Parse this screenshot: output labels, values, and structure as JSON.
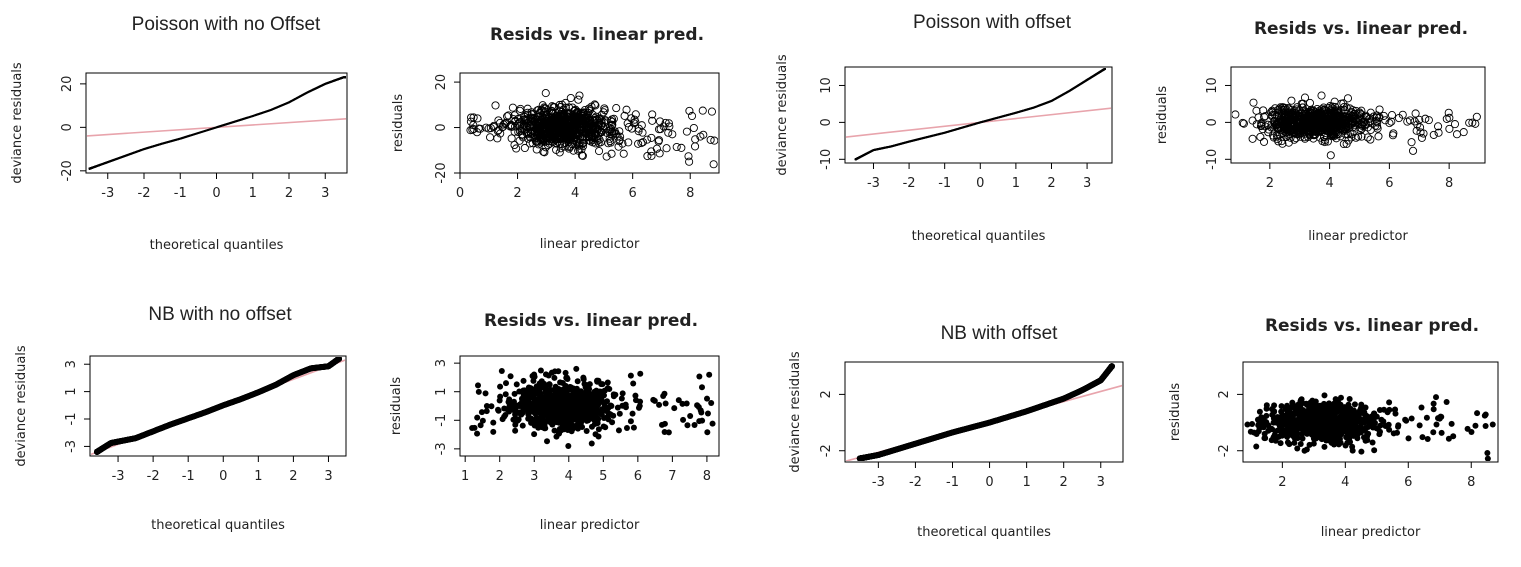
{
  "colors": {
    "points": "#000000",
    "reference_line": "#e8a4ac",
    "frame": "#000000"
  },
  "chart_data": [
    {
      "type": "scatter",
      "panel_id": "pois-noff-qq",
      "title": "Poisson with no Offset",
      "title_style": "plain",
      "xlabel": "theoretical quantiles",
      "ylabel": "deviance residuals",
      "xlim": [
        -3.6,
        3.6
      ],
      "ylim": [
        -21,
        25
      ],
      "xticks": [
        -3,
        -2,
        -1,
        0,
        1,
        2,
        3
      ],
      "yticks": [
        -20,
        0,
        20
      ],
      "marker": "dot",
      "kind": "qq",
      "qq_sd": 7.6,
      "qq_range": [
        -3.5,
        3.6
      ],
      "qq_curve": [
        [
          -3.5,
          -19
        ],
        [
          -3,
          -16
        ],
        [
          -2.5,
          -13
        ],
        [
          -2,
          -10
        ],
        [
          -1.5,
          -7.5
        ],
        [
          -1,
          -5.2
        ],
        [
          -0.5,
          -2.6
        ],
        [
          0,
          0
        ],
        [
          0.5,
          2.6
        ],
        [
          1,
          5.2
        ],
        [
          1.5,
          8
        ],
        [
          2,
          11.5
        ],
        [
          2.5,
          16
        ],
        [
          3,
          20
        ],
        [
          3.5,
          23
        ]
      ],
      "reference_line": {
        "slope": 1.1,
        "intercept": 0
      },
      "grid": false
    },
    {
      "type": "scatter",
      "panel_id": "pois-noff-rvl",
      "title": "Resids vs. linear pred.",
      "title_style": "bold",
      "xlabel": "linear predictor",
      "ylabel": "residuals",
      "xlim": [
        0,
        9.0
      ],
      "ylim": [
        -20,
        24
      ],
      "xticks": [
        0,
        2,
        4,
        6,
        8
      ],
      "yticks": [
        -20,
        0,
        20
      ],
      "marker": "circle",
      "kind": "resid",
      "resid_clusters": [
        {
          "n": 750,
          "xmean": 3.6,
          "xsd": 0.85,
          "ysd": 5
        },
        {
          "n": 55,
          "xmin": 5.2,
          "xmax": 8.9,
          "ymean": -3,
          "ysd": 8
        },
        {
          "n": 25,
          "xmin": 0.3,
          "xmax": 1.8,
          "ymean": 1,
          "ysd": 2
        }
      ],
      "grid": false
    },
    {
      "type": "scatter",
      "panel_id": "pois-off-qq",
      "title": "Poisson with offset",
      "title_style": "plain",
      "xlabel": "theoretical quantiles",
      "ylabel": "deviance residuals",
      "xlim": [
        -3.8,
        3.7
      ],
      "ylim": [
        -11,
        15
      ],
      "xticks": [
        -3,
        -2,
        -1,
        0,
        1,
        2,
        3
      ],
      "yticks": [
        -10,
        0,
        10
      ],
      "marker": "dot",
      "kind": "qq",
      "qq_sd": 3.3,
      "qq_range": [
        -3.5,
        3.5
      ],
      "qq_curve": [
        [
          -3.5,
          -10
        ],
        [
          -3,
          -7.5
        ],
        [
          -2.5,
          -6.5
        ],
        [
          -2,
          -5.2
        ],
        [
          -1.5,
          -4
        ],
        [
          -1,
          -2.8
        ],
        [
          -0.5,
          -1.4
        ],
        [
          0,
          0
        ],
        [
          0.5,
          1.3
        ],
        [
          1,
          2.6
        ],
        [
          1.5,
          4
        ],
        [
          2,
          5.8
        ],
        [
          2.5,
          8.5
        ],
        [
          3,
          11.5
        ],
        [
          3.5,
          14.5
        ]
      ],
      "reference_line": {
        "slope": 1.05,
        "intercept": 0
      },
      "grid": false
    },
    {
      "type": "scatter",
      "panel_id": "pois-off-rvl",
      "title": "Resids vs. linear pred.",
      "title_style": "bold",
      "xlabel": "linear predictor",
      "ylabel": "residuals",
      "xlim": [
        0.7,
        9.2
      ],
      "ylim": [
        -11,
        15
      ],
      "xticks": [
        2,
        4,
        6,
        8
      ],
      "yticks": [
        -10,
        0,
        10
      ],
      "marker": "circle",
      "kind": "resid",
      "resid_clusters": [
        {
          "n": 750,
          "xmean": 3.5,
          "xsd": 0.9,
          "ysd": 2.6
        },
        {
          "n": 40,
          "xmin": 5.5,
          "xmax": 9.0,
          "ymean": -0.5,
          "ysd": 3
        }
      ],
      "grid": false
    },
    {
      "type": "scatter",
      "panel_id": "nb-noff-qq",
      "title": "NB with no offset",
      "title_style": "plain",
      "xlabel": "theoretical quantiles",
      "ylabel": "deviance residuals",
      "xlim": [
        -3.8,
        3.5
      ],
      "ylim": [
        -3.7,
        3.6
      ],
      "xticks": [
        -3,
        -2,
        -1,
        0,
        1,
        2,
        3
      ],
      "yticks": [
        -3,
        -1,
        1,
        3
      ],
      "marker": "filled",
      "kind": "qq",
      "qq_sd": 0.95,
      "qq_range": [
        -3.6,
        3.3
      ],
      "qq_curve": [
        [
          -3.6,
          -3.4
        ],
        [
          -3.2,
          -2.75
        ],
        [
          -2.5,
          -2.4
        ],
        [
          -2,
          -1.9
        ],
        [
          -1.5,
          -1.4
        ],
        [
          -1,
          -0.95
        ],
        [
          -0.5,
          -0.5
        ],
        [
          0,
          0
        ],
        [
          0.5,
          0.45
        ],
        [
          1,
          0.95
        ],
        [
          1.5,
          1.5
        ],
        [
          2,
          2.2
        ],
        [
          2.5,
          2.7
        ],
        [
          3,
          2.85
        ],
        [
          3.3,
          3.4
        ]
      ],
      "reference_line": {
        "slope": 0.95,
        "intercept": 0
      },
      "grid": false
    },
    {
      "type": "scatter",
      "panel_id": "nb-noff-rvl",
      "title": "Resids vs. linear pred.",
      "title_style": "bold",
      "xlabel": "linear predictor",
      "ylabel": "residuals",
      "xlim": [
        0.85,
        8.35
      ],
      "ylim": [
        -3.5,
        3.5
      ],
      "xticks": [
        1,
        2,
        3,
        4,
        5,
        6,
        7,
        8
      ],
      "yticks": [
        -3,
        -1,
        1,
        3
      ],
      "marker": "filled",
      "kind": "resid",
      "resid_clusters": [
        {
          "n": 700,
          "xmean": 3.8,
          "xsd": 0.7,
          "ysd": 1.0
        },
        {
          "n": 45,
          "xmin": 5.3,
          "xmax": 8.2,
          "ymean": 0,
          "ysd": 1.1
        },
        {
          "n": 25,
          "xmin": 1.2,
          "xmax": 2.5,
          "ymean": -0.3,
          "ysd": 1.0
        }
      ],
      "grid": false
    },
    {
      "type": "scatter",
      "panel_id": "nb-off-qq",
      "title": "NB with offset",
      "title_style": "plain",
      "xlabel": "theoretical quantiles",
      "ylabel": "deviance residuals",
      "xlim": [
        -3.9,
        3.6
      ],
      "ylim": [
        -2.8,
        4.3
      ],
      "xticks": [
        -3,
        -2,
        -1,
        0,
        1,
        2,
        3
      ],
      "yticks": [
        -2,
        2
      ],
      "marker": "filled",
      "kind": "qq",
      "qq_sd": 0.9,
      "qq_range": [
        -3.5,
        3.3
      ],
      "qq_curve": [
        [
          -3.5,
          -2.55
        ],
        [
          -3,
          -2.3
        ],
        [
          -2.5,
          -1.9
        ],
        [
          -2,
          -1.5
        ],
        [
          -1.5,
          -1.1
        ],
        [
          -1,
          -0.7
        ],
        [
          -0.5,
          -0.35
        ],
        [
          0,
          0
        ],
        [
          0.5,
          0.4
        ],
        [
          1,
          0.8
        ],
        [
          1.5,
          1.25
        ],
        [
          2,
          1.7
        ],
        [
          2.5,
          2.3
        ],
        [
          3,
          3.0
        ],
        [
          3.3,
          4.0
        ]
      ],
      "reference_line": {
        "slope": 0.72,
        "intercept": 0.05
      },
      "grid": false
    },
    {
      "type": "scatter",
      "panel_id": "nb-off-rvl",
      "title": "Resids vs. linear pred.",
      "title_style": "bold",
      "xlabel": "linear predictor",
      "ylabel": "residuals",
      "xlim": [
        0.75,
        8.85
      ],
      "ylim": [
        -2.8,
        4.3
      ],
      "xticks": [
        2,
        4,
        6,
        8
      ],
      "yticks": [
        -2,
        2
      ],
      "marker": "filled",
      "kind": "resid",
      "resid_clusters": [
        {
          "n": 700,
          "xmean": 3.3,
          "xsd": 0.8,
          "ysd": 0.85
        },
        {
          "n": 45,
          "xmin": 5.2,
          "xmax": 8.7,
          "ymean": 0,
          "ysd": 0.9
        },
        {
          "n": 25,
          "xmin": 1.1,
          "xmax": 2.2,
          "ymean": -0.3,
          "ysd": 0.9
        }
      ],
      "grid": false
    }
  ]
}
